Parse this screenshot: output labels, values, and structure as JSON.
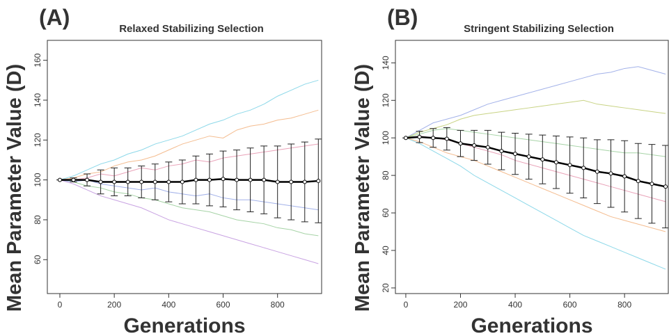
{
  "chart_data": [
    {
      "type": "line",
      "panel_label": "(A)",
      "title": "Relaxed Stabilizing Selection",
      "xlabel": "Generations",
      "ylabel": "Mean Parameter Value (D)",
      "xlim": [
        -46,
        962
      ],
      "ylim": [
        43,
        170
      ],
      "xticks": [
        0,
        200,
        400,
        600,
        800
      ],
      "yticks": [
        60,
        80,
        100,
        120,
        140,
        160
      ],
      "x": [
        0,
        50,
        100,
        150,
        200,
        250,
        300,
        350,
        400,
        450,
        500,
        550,
        600,
        650,
        700,
        750,
        800,
        850,
        900,
        950
      ],
      "series": [
        {
          "color": "#5bc8e0",
          "values": [
            100,
            102,
            105,
            108,
            110,
            113,
            115,
            118,
            120,
            122,
            125,
            128,
            130,
            133,
            135,
            138,
            142,
            145,
            148,
            150
          ]
        },
        {
          "color": "#b07ad6",
          "values": [
            100,
            98,
            95,
            92,
            90,
            88,
            86,
            83,
            80,
            78,
            76,
            74,
            72,
            70,
            68,
            66,
            64,
            62,
            60,
            58
          ]
        },
        {
          "color": "#f0a060",
          "values": [
            100,
            101,
            103,
            104,
            107,
            109,
            110,
            112,
            115,
            118,
            120,
            122,
            121,
            125,
            127,
            128,
            130,
            131,
            133,
            135
          ]
        },
        {
          "color": "#80c080",
          "values": [
            100,
            99,
            97,
            96,
            94,
            93,
            91,
            90,
            88,
            86,
            85,
            84,
            82,
            80,
            79,
            78,
            76,
            75,
            73,
            72
          ]
        },
        {
          "color": "#e07a9a",
          "values": [
            100,
            100,
            101,
            103,
            102,
            104,
            106,
            105,
            107,
            108,
            110,
            109,
            111,
            112,
            113,
            114,
            115,
            116,
            117,
            118
          ]
        },
        {
          "color": "#7a90e0",
          "values": [
            100,
            99,
            100,
            98,
            97,
            96,
            95,
            96,
            94,
            93,
            92,
            93,
            91,
            90,
            90,
            89,
            88,
            87,
            86,
            85
          ]
        },
        {
          "color": "#000000",
          "mean": true,
          "values": [
            100,
            100,
            100,
            99,
            99,
            99,
            99,
            99,
            99,
            99,
            100,
            100,
            100.5,
            100,
            100,
            100,
            99,
            99,
            99,
            99.5
          ],
          "errors": [
            0,
            1,
            3,
            6,
            7,
            7,
            8,
            9,
            10,
            11,
            12,
            13,
            14,
            15,
            16,
            17,
            18,
            19,
            20,
            21
          ]
        }
      ]
    },
    {
      "type": "line",
      "panel_label": "(B)",
      "title": "Stringent Stabilizing Selection",
      "xlabel": "Generations",
      "ylabel": "Mean Parameter Value (D)",
      "xlim": [
        -38,
        960
      ],
      "ylim": [
        17,
        152
      ],
      "xticks": [
        0,
        200,
        400,
        600,
        800
      ],
      "yticks": [
        20,
        40,
        60,
        80,
        100,
        120,
        140
      ],
      "x": [
        0,
        50,
        100,
        150,
        200,
        250,
        300,
        350,
        400,
        450,
        500,
        550,
        600,
        650,
        700,
        750,
        800,
        850,
        900,
        950
      ],
      "series": [
        {
          "color": "#7a90e0",
          "values": [
            100,
            104,
            108,
            110,
            112,
            115,
            118,
            120,
            122,
            124,
            126,
            128,
            130,
            132,
            134,
            135,
            137,
            138,
            136,
            134
          ]
        },
        {
          "color": "#5bc8e0",
          "values": [
            100,
            97,
            93,
            89,
            85,
            80,
            76,
            72,
            68,
            64,
            60,
            56,
            52,
            48,
            45,
            42,
            39,
            36,
            33,
            30
          ]
        },
        {
          "color": "#80c080",
          "values": [
            100,
            102,
            104,
            105,
            104,
            103,
            102,
            101,
            100,
            99,
            98,
            97,
            96,
            95,
            94,
            93,
            92,
            92,
            91,
            90
          ]
        },
        {
          "color": "#f0a060",
          "values": [
            100,
            98,
            95,
            92,
            90,
            88,
            85,
            82,
            79,
            76,
            73,
            70,
            67,
            64,
            61,
            58,
            56,
            54,
            52,
            50
          ]
        },
        {
          "color": "#e07a9a",
          "values": [
            100,
            101,
            100,
            99,
            97,
            95,
            93,
            91,
            88,
            86,
            84,
            82,
            80,
            78,
            76,
            74,
            72,
            70,
            68,
            66
          ]
        },
        {
          "color": "#b0c050",
          "values": [
            100,
            103,
            105,
            107,
            110,
            112,
            113,
            114,
            115,
            116,
            117,
            118,
            119,
            120,
            118,
            117,
            116,
            115,
            114,
            113
          ]
        },
        {
          "color": "#000000",
          "mean": true,
          "values": [
            100,
            100.5,
            100,
            99.5,
            97,
            96,
            95,
            93,
            91.5,
            90,
            88.5,
            87,
            85.5,
            84,
            82,
            81,
            79.5,
            77,
            75.5,
            74
          ],
          "errors": [
            0,
            3,
            5,
            6,
            7,
            8,
            9,
            10,
            11,
            12,
            13,
            14,
            15,
            16,
            17,
            18,
            19,
            20,
            21,
            22
          ]
        }
      ]
    }
  ]
}
